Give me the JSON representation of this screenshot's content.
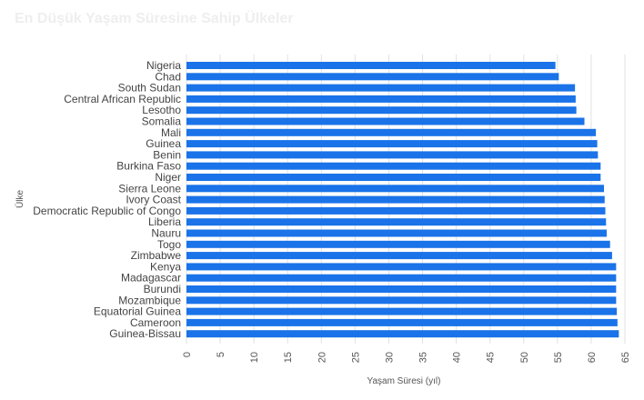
{
  "chart_data": {
    "type": "bar",
    "orientation": "horizontal",
    "title": "En Düşük Yaşam Süresine Sahip Ülkeler",
    "xlabel": "Yaşam Süresi (yıl)",
    "ylabel": "Ülke",
    "xlim": [
      0,
      65
    ],
    "xticks": [
      "0",
      "5",
      "10",
      "15",
      "20",
      "25",
      "30",
      "35",
      "40",
      "45",
      "50",
      "55",
      "60",
      "65"
    ],
    "grid": true,
    "bar_color": "#1a73e8",
    "categories": [
      "Nigeria",
      "Chad",
      "South Sudan",
      "Central African Republic",
      "Lesotho",
      "Somalia",
      "Mali",
      "Guinea",
      "Benin",
      "Burkina Faso",
      "Niger",
      "Sierra Leone",
      "Ivory Coast",
      "Democratic Republic of Congo",
      "Liberia",
      "Nauru",
      "Togo",
      "Zimbabwe",
      "Kenya",
      "Madagascar",
      "Burundi",
      "Mozambique",
      "Equatorial Guinea",
      "Cameroon",
      "Guinea-Bissau"
    ],
    "values": [
      54.7,
      55.2,
      57.6,
      57.7,
      57.8,
      59.0,
      60.7,
      60.9,
      61.0,
      61.4,
      61.4,
      61.9,
      62.0,
      62.1,
      62.2,
      62.3,
      62.8,
      63.1,
      63.7,
      63.7,
      63.7,
      63.7,
      63.8,
      63.9,
      64.1
    ]
  }
}
